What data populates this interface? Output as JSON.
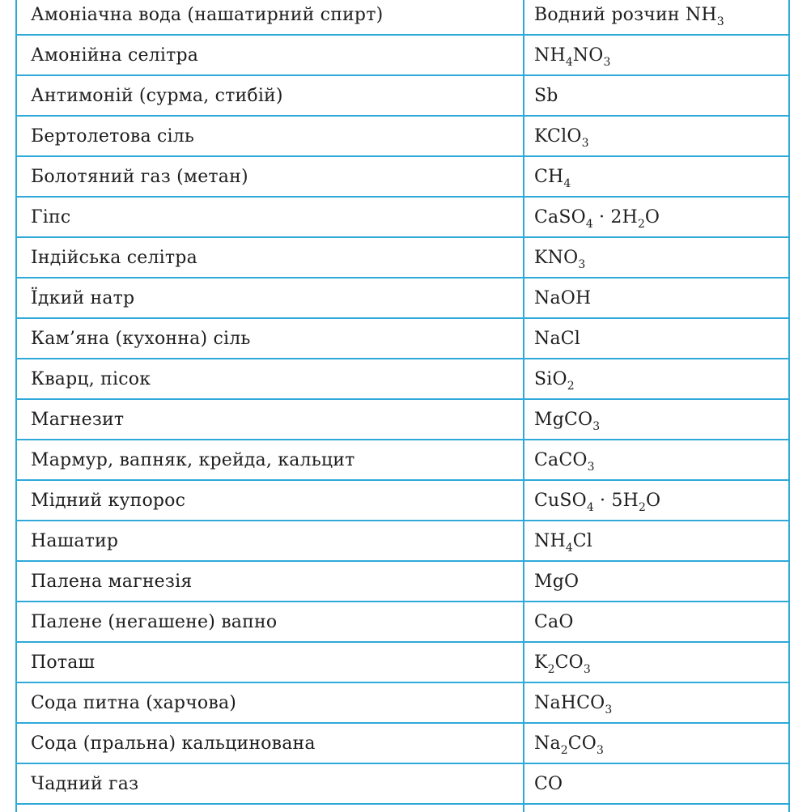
{
  "colors": {
    "border": "#2ea9da",
    "text": "#1e1e1e",
    "background": "#ffffff"
  },
  "table": {
    "column_semantics": [
      "trivial-name",
      "chemical-formula"
    ],
    "rows": [
      {
        "name": "Амоніачна вода (нашатирний спирт)",
        "formula": [
          {
            "t": "Водний розчин NH"
          },
          {
            "s": "3"
          }
        ]
      },
      {
        "name": "Амонійна селітра",
        "formula": [
          {
            "t": "NH"
          },
          {
            "s": "4"
          },
          {
            "t": "NO"
          },
          {
            "s": "3"
          }
        ]
      },
      {
        "name": "Антимоній (сурма, стибій)",
        "formula": [
          {
            "t": "Sb"
          }
        ]
      },
      {
        "name": "Бертолетова сіль",
        "formula": [
          {
            "t": "KClO"
          },
          {
            "s": "3"
          }
        ]
      },
      {
        "name": "Болотяний газ (метан)",
        "formula": [
          {
            "t": "CH"
          },
          {
            "s": "4"
          }
        ]
      },
      {
        "name": "Гіпс",
        "formula": [
          {
            "t": "CaSO"
          },
          {
            "s": "4"
          },
          {
            "t": " · 2H"
          },
          {
            "s": "2"
          },
          {
            "t": "O"
          }
        ]
      },
      {
        "name": "Індійська селітра",
        "formula": [
          {
            "t": "KNO"
          },
          {
            "s": "3"
          }
        ]
      },
      {
        "name": "Їдкий натр",
        "formula": [
          {
            "t": "NaOH"
          }
        ]
      },
      {
        "name": "Кам’яна (кухонна) сіль",
        "formula": [
          {
            "t": "NaCl"
          }
        ]
      },
      {
        "name": "Кварц, пісок",
        "formula": [
          {
            "t": "SiO"
          },
          {
            "s": "2"
          }
        ]
      },
      {
        "name": "Магнезит",
        "formula": [
          {
            "t": "MgCO"
          },
          {
            "s": "3"
          }
        ]
      },
      {
        "name": "Мармур, вапняк, крейда, кальцит",
        "formula": [
          {
            "t": "CaCO"
          },
          {
            "s": "3"
          }
        ]
      },
      {
        "name": "Мідний купорос",
        "formula": [
          {
            "t": "CuSO"
          },
          {
            "s": "4"
          },
          {
            "t": " · 5H"
          },
          {
            "s": "2"
          },
          {
            "t": "O"
          }
        ]
      },
      {
        "name": "Нашатир",
        "formula": [
          {
            "t": "NH"
          },
          {
            "s": "4"
          },
          {
            "t": "Cl"
          }
        ]
      },
      {
        "name": "Палена магнезія",
        "formula": [
          {
            "t": "MgO"
          }
        ]
      },
      {
        "name": "Палене (негашене) вапно",
        "formula": [
          {
            "t": "CaO"
          }
        ]
      },
      {
        "name": "Поташ",
        "formula": [
          {
            "t": "K"
          },
          {
            "s": "2"
          },
          {
            "t": "CO"
          },
          {
            "s": "3"
          }
        ]
      },
      {
        "name": "Сода питна (харчова)",
        "formula": [
          {
            "t": "NaHCO"
          },
          {
            "s": "3"
          }
        ]
      },
      {
        "name": "Сода (пральна) кальцинована",
        "formula": [
          {
            "t": "Na"
          },
          {
            "s": "2"
          },
          {
            "t": "CO"
          },
          {
            "s": "3"
          }
        ]
      },
      {
        "name": "Чадний газ",
        "formula": [
          {
            "t": "CO"
          }
        ]
      },
      {
        "name": "",
        "formula": []
      }
    ]
  }
}
